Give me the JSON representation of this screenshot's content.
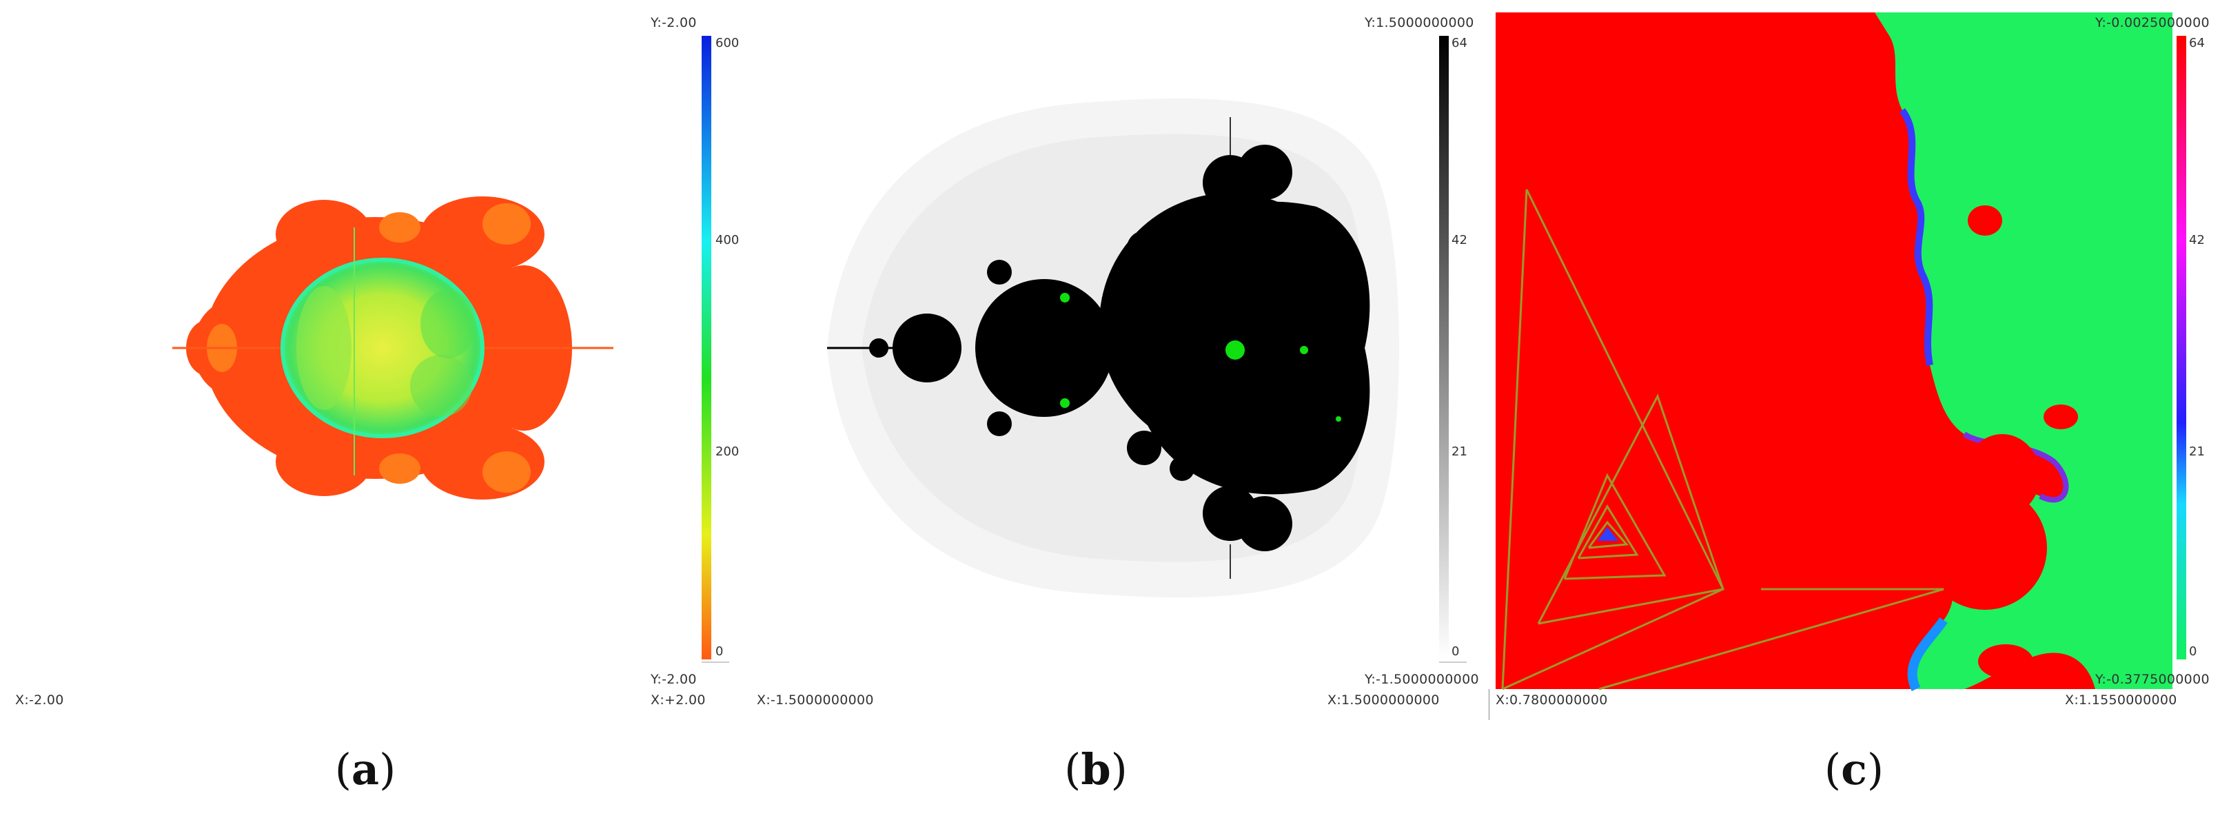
{
  "panels": [
    {
      "id": "a",
      "caption_letter": "a",
      "y_top": "Y:-2.00",
      "y_bottom": "Y:-2.00",
      "x_left": "X:-2.00",
      "x_right": "X:+2.00",
      "colorbar_ticks": [
        "600",
        "400",
        "200",
        "0"
      ],
      "colorbar_colors": [
        "#0a1ee0",
        "#19f0f0",
        "#22e022",
        "#e6f01a",
        "#ff5a14"
      ]
    },
    {
      "id": "b",
      "caption_letter": "b",
      "y_top": "Y:1.5000000000",
      "y_bottom": "Y:-1.5000000000",
      "x_left": "X:-1.5000000000",
      "x_right": "X:1.5000000000",
      "colorbar_ticks": [
        "64",
        "42",
        "21",
        "0"
      ],
      "colorbar_colors": [
        "#000000",
        "#ffffff"
      ]
    },
    {
      "id": "c",
      "caption_letter": "c",
      "y_top": "Y:-0.0025000000",
      "y_bottom": "Y:-0.3775000000",
      "x_left": "X:0.7800000000",
      "x_right": "X:1.1550000000",
      "colorbar_ticks": [
        "64",
        "42",
        "21",
        "0"
      ],
      "colorbar_colors": [
        "#ff0000",
        "#ff10ff",
        "#2020ff",
        "#18d8ff",
        "#10f060"
      ]
    }
  ],
  "captions": {
    "open": "(",
    "close": ")"
  }
}
